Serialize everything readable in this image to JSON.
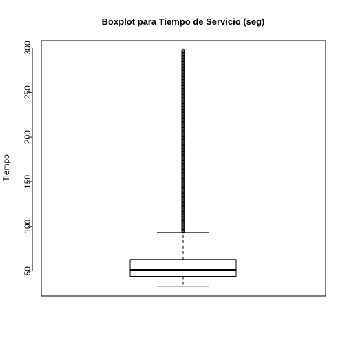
{
  "chart_data": {
    "type": "boxplot",
    "title": "Boxplot para Tiempo de Servicio (seg)",
    "xlabel": "",
    "ylabel": "Tiempo",
    "ylim": [
      22,
      308
    ],
    "yticks": [
      50,
      100,
      150,
      200,
      250,
      300
    ],
    "grid": false,
    "legend": "none",
    "series": [
      {
        "lower_whisker": 33,
        "q1": 44,
        "median": 51,
        "q3": 63,
        "upper_whisker": 93,
        "outliers": {
          "from": 94,
          "to": 297,
          "description_values_dense": true
        }
      }
    ],
    "colors": {
      "box": "#000000",
      "median": "#000000",
      "outlier": "#000000"
    }
  }
}
